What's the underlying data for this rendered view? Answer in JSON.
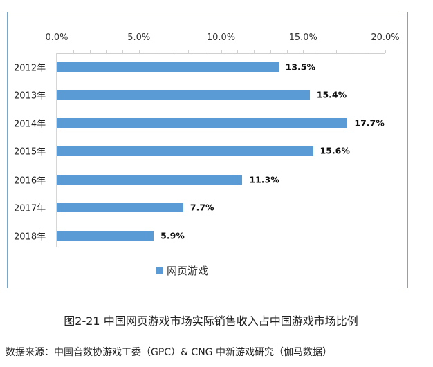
{
  "chart_data": {
    "type": "bar",
    "orientation": "horizontal",
    "title": "图2-21 中国网页游戏市场实际销售收入占中国游戏市场比例",
    "xlabel": "",
    "ylabel": "",
    "xlim": [
      0,
      20
    ],
    "x_ticks": [
      "0.0%",
      "5.0%",
      "10.0%",
      "15.0%",
      "20.0%"
    ],
    "x_tick_values": [
      0,
      5,
      10,
      15,
      20
    ],
    "grid": false,
    "legend_position": "bottom",
    "categories": [
      "2012年",
      "2013年",
      "2014年",
      "2015年",
      "2016年",
      "2017年",
      "2018年"
    ],
    "series": [
      {
        "name": "网页游戏",
        "color": "#5b9bd5",
        "values": [
          13.5,
          15.4,
          17.7,
          15.6,
          11.3,
          7.7,
          5.9
        ],
        "labels": [
          "13.5%",
          "15.4%",
          "17.7%",
          "15.6%",
          "11.3%",
          "7.7%",
          "5.9%"
        ]
      }
    ]
  },
  "legend": {
    "label": "网页游戏",
    "color": "#5b9bd5"
  },
  "caption": "图2-21  中国网页游戏市场实际销售收入占中国游戏市场比例",
  "source": "数据来源：中国音数协游戏工委（GPC）& CNG 中新游戏研究（伽马数据）"
}
